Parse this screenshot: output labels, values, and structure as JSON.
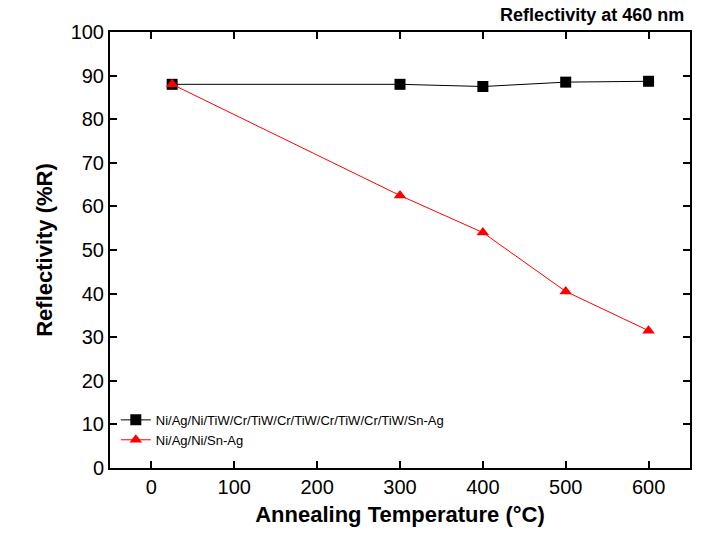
{
  "chart_data": {
    "type": "line",
    "title": "Reflectivity at 460 nm",
    "x_label": "Annealing Temperature (°C)",
    "y_label": "Reflectivity (%R)",
    "x": [
      25,
      300,
      400,
      500,
      600
    ],
    "series": [
      {
        "name": "Ni/Ag/Ni/TiW/Cr/TiW/Cr/TiW/Cr/TiW/Cr/TiW/Sn-Ag",
        "color": "#000000",
        "marker": "square",
        "line_style": "solid",
        "values": [
          88,
          88,
          87.5,
          88.5,
          88.7
        ]
      },
      {
        "name": "Ni/Ag/Ni/Sn-Ag",
        "color": "#ff0000",
        "marker": "triangle-up",
        "line_style": "solid",
        "values": [
          88,
          62.5,
          54,
          40.5,
          31.5
        ]
      }
    ],
    "xlim": [
      -50,
      650
    ],
    "xticks": [
      0,
      100,
      200,
      300,
      400,
      500,
      600
    ],
    "ylim": [
      0,
      100
    ],
    "yticks": [
      0,
      10,
      20,
      30,
      40,
      50,
      60,
      70,
      80,
      90,
      100
    ],
    "grid": false,
    "legend": "lower left"
  }
}
